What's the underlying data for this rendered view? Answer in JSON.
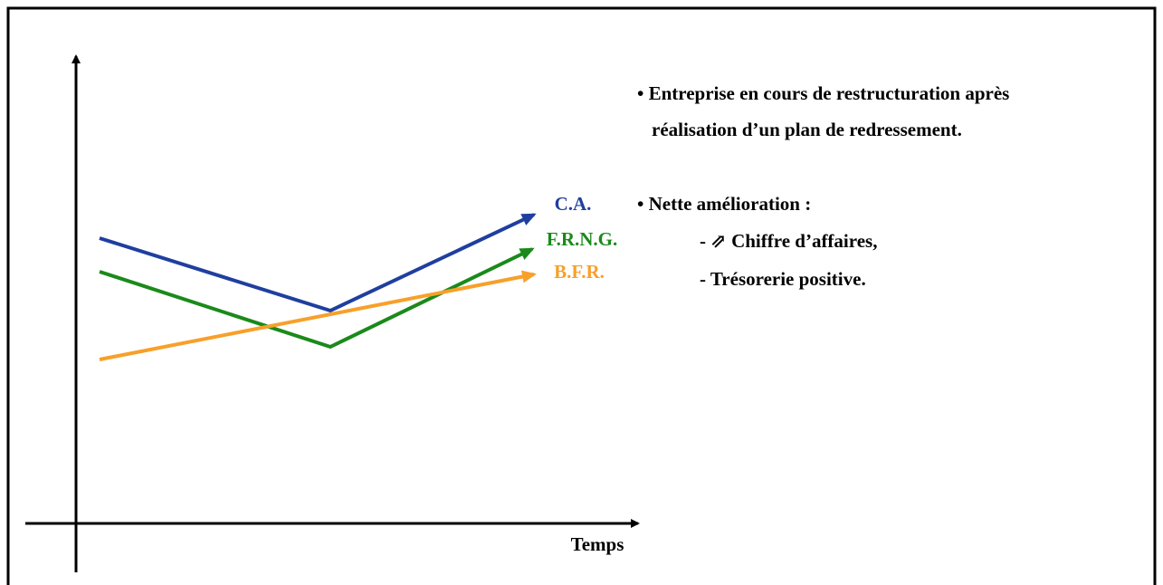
{
  "axis": {
    "x_label": "Temps"
  },
  "curves": [
    {
      "label": "C.A."
    },
    {
      "label": "F.R.N.G."
    },
    {
      "label": "B.F.R."
    }
  ],
  "notes": {
    "point_1": {
      "line_1": "• Entreprise en cours de restructuration après",
      "line_2": "réalisation d’un plan de redressement."
    },
    "point_2": {
      "heading": "• Nette amélioration :",
      "items": [
        "- ⇗ Chiffre d’affaires,",
        "- Trésorerie positive."
      ]
    }
  }
}
